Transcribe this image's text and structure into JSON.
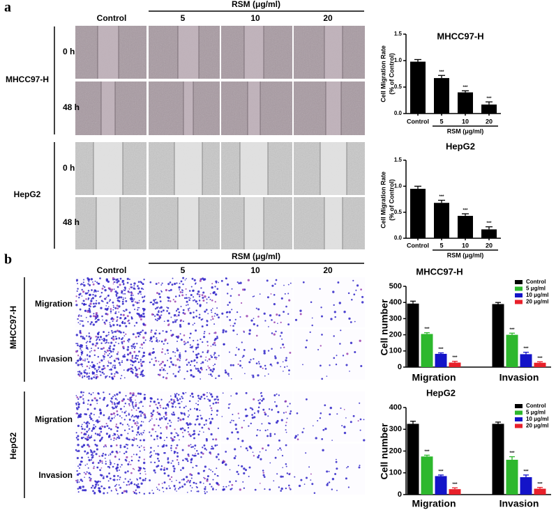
{
  "panel_a": {
    "label": "a",
    "treatment_header": "RSM (μg/ml)",
    "columns": [
      "Control",
      "5",
      "10",
      "20"
    ],
    "rows": [
      {
        "cell_line": "MHCC97-H",
        "times": [
          "0 h",
          "48 h"
        ]
      },
      {
        "cell_line": "HepG2",
        "times": [
          "0 h",
          "48 h"
        ]
      }
    ]
  },
  "panel_b": {
    "label": "b",
    "treatment_header": "RSM (μg/ml)",
    "columns": [
      "Control",
      "5",
      "10",
      "20"
    ],
    "rows": [
      {
        "cell_line": "MHCC97-H",
        "assays": [
          "Migration",
          "Invasion"
        ]
      },
      {
        "cell_line": "HepG2",
        "assays": [
          "Migration",
          "Invasion"
        ]
      }
    ]
  },
  "chart_data": [
    {
      "type": "bar",
      "title": "MHCC97-H",
      "y_label": [
        "Cell Migration Rate",
        "(% of Control)"
      ],
      "x_label": "RSM (μg/ml)",
      "categories": [
        "Control",
        "5",
        "10",
        "20"
      ],
      "values": [
        0.98,
        0.67,
        0.4,
        0.17
      ],
      "errors": [
        0.04,
        0.05,
        0.03,
        0.05
      ],
      "annotations": [
        null,
        "***",
        "***",
        "***"
      ],
      "color": "#000000",
      "ylim": [
        0,
        1.5
      ],
      "yticks": [
        {
          "value": 0,
          "label": "0.0"
        },
        0.5,
        {
          "value": 1,
          "label": "1.0"
        },
        1.5
      ]
    },
    {
      "type": "bar",
      "title": "HepG2",
      "y_label": [
        "Cell Migration Rate",
        "(% of Control)"
      ],
      "x_label": "RSM (μg/ml)",
      "categories": [
        "Control",
        "5",
        "10",
        "20"
      ],
      "values": [
        0.95,
        0.68,
        0.43,
        0.17
      ],
      "errors": [
        0.05,
        0.05,
        0.04,
        0.05
      ],
      "annotations": [
        null,
        "***",
        "***",
        "***"
      ],
      "color": "#000000",
      "ylim": [
        0,
        1.5
      ],
      "yticks": [
        {
          "value": 0,
          "label": "0.0"
        },
        0.5,
        {
          "value": 1,
          "label": "1.0"
        },
        1.5
      ]
    },
    {
      "type": "grouped_bar",
      "title": "MHCC97-H",
      "y_label": [
        "Cell number"
      ],
      "categories": [
        "Migration",
        "Invasion"
      ],
      "series": [
        {
          "name": "Control",
          "color": "#000000",
          "values": [
            393,
            390
          ],
          "errors": [
            15,
            10
          ],
          "annotations": [
            null,
            null
          ]
        },
        {
          "name": "5 μg/ml",
          "color": "#2db82d",
          "values": [
            205,
            200
          ],
          "errors": [
            8,
            10
          ],
          "annotations": [
            "***",
            "***"
          ]
        },
        {
          "name": "10 μg/ml",
          "color": "#1414c8",
          "values": [
            82,
            80
          ],
          "errors": [
            6,
            12
          ],
          "annotations": [
            "***",
            "***"
          ]
        },
        {
          "name": "20 μg/ml",
          "color": "#e8202a",
          "values": [
            28,
            27
          ],
          "errors": [
            8,
            6
          ],
          "annotations": [
            "***",
            "***"
          ]
        }
      ],
      "ylim": [
        0,
        500
      ],
      "yticks": [
        0,
        100,
        200,
        300,
        400,
        500
      ],
      "legend": "upper right"
    },
    {
      "type": "grouped_bar",
      "title": "HepG2",
      "y_label": [
        "Cell number"
      ],
      "categories": [
        "Migration",
        "Invasion"
      ],
      "series": [
        {
          "name": "Control",
          "color": "#000000",
          "values": [
            325,
            325
          ],
          "errors": [
            12,
            8
          ],
          "annotations": [
            null,
            null
          ]
        },
        {
          "name": "5 μg/ml",
          "color": "#2db82d",
          "values": [
            175,
            160
          ],
          "errors": [
            6,
            14
          ],
          "annotations": [
            "***",
            "***"
          ]
        },
        {
          "name": "10 μg/ml",
          "color": "#1414c8",
          "values": [
            85,
            80
          ],
          "errors": [
            5,
            10
          ],
          "annotations": [
            "***",
            "***"
          ]
        },
        {
          "name": "20 μg/ml",
          "color": "#e8202a",
          "values": [
            25,
            27
          ],
          "errors": [
            6,
            6
          ],
          "annotations": [
            "***",
            "***"
          ]
        }
      ],
      "ylim": [
        0,
        400
      ],
      "yticks": [
        0,
        100,
        200,
        300,
        400
      ],
      "legend": "upper right"
    }
  ]
}
